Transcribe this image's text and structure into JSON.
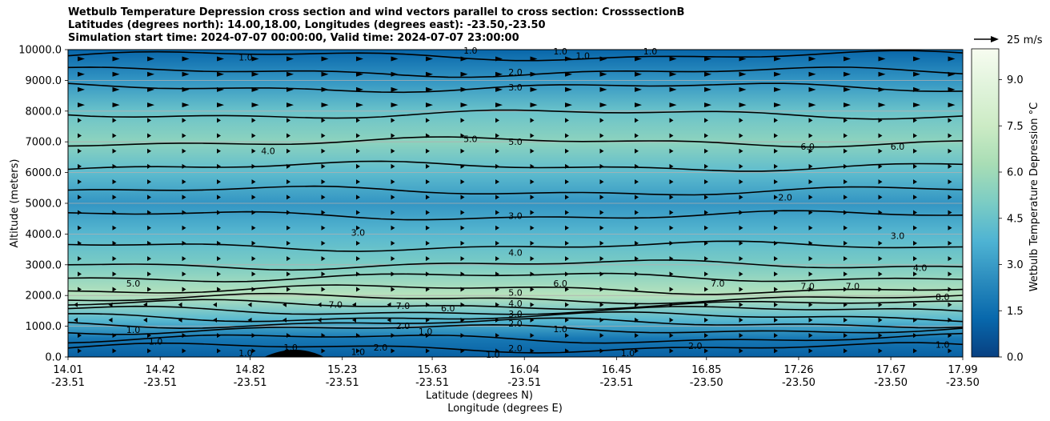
{
  "title_lines": [
    "Wetbulb Temperature Depression cross section and wind vectors parallel to cross section: CrosssectionB",
    "Latitudes (degrees north): 14.00,18.00, Longitudes (degrees east): -23.50,-23.50",
    "Simulation start time: 2024-07-07 00:00:00, Valid time: 2024-07-07 23:00:00"
  ],
  "chart_data": {
    "type": "heatmap",
    "ylabel": "Altitude (meters)",
    "xlabel_lat": "Latitude (degrees N)",
    "xlabel_lon": "Longitude (degrees E)",
    "ylim": [
      0,
      10000
    ],
    "yticks": [
      "0.0",
      "1000.0",
      "2000.0",
      "3000.0",
      "4000.0",
      "5000.0",
      "6000.0",
      "7000.0",
      "8000.0",
      "9000.0",
      "10000.0"
    ],
    "grid": "horizontal",
    "xticks": [
      {
        "lat": "14.01",
        "lon": "-23.51"
      },
      {
        "lat": "14.42",
        "lon": "-23.51"
      },
      {
        "lat": "14.82",
        "lon": "-23.51"
      },
      {
        "lat": "15.23",
        "lon": "-23.51"
      },
      {
        "lat": "15.63",
        "lon": "-23.51"
      },
      {
        "lat": "16.04",
        "lon": "-23.51"
      },
      {
        "lat": "16.45",
        "lon": "-23.51"
      },
      {
        "lat": "16.85",
        "lon": "-23.50"
      },
      {
        "lat": "17.26",
        "lon": "-23.50"
      },
      {
        "lat": "17.67",
        "lon": "-23.50"
      },
      {
        "lat": "17.99",
        "lon": "-23.50"
      }
    ],
    "colorbar": {
      "label": "Wetbulb Temperature Depression °C",
      "range": [
        0.0,
        10.0
      ],
      "ticks": [
        "0.0",
        "1.5",
        "3.0",
        "4.5",
        "6.0",
        "7.5",
        "9.0"
      ],
      "colormap": "GnBu_r"
    },
    "wind_key": "25 m/s",
    "colormap_colors": [
      "#084081",
      "#0868ac",
      "#2b8cbe",
      "#4eb3d3",
      "#7bccc4",
      "#a8ddb5",
      "#ccebc5",
      "#e0f3db",
      "#f7fcf0"
    ],
    "depression_profile": [
      {
        "alt": 0,
        "value": 1.0
      },
      {
        "alt": 600,
        "value": 1.8
      },
      {
        "alt": 1200,
        "value": 4.0
      },
      {
        "alt": 2000,
        "value": 6.8
      },
      {
        "alt": 3000,
        "value": 5.0
      },
      {
        "alt": 4000,
        "value": 4.0
      },
      {
        "alt": 5000,
        "value": 2.8
      },
      {
        "alt": 6000,
        "value": 4.2
      },
      {
        "alt": 7000,
        "value": 5.5
      },
      {
        "alt": 8000,
        "value": 4.5
      },
      {
        "alt": 9000,
        "value": 2.8
      },
      {
        "alt": 10000,
        "value": 1.2
      }
    ],
    "contour_labels": [
      {
        "text": "1.0",
        "x": 16.3,
        "alt": 9800
      },
      {
        "text": "2.0",
        "x": 16.0,
        "alt": 9270
      },
      {
        "text": "3.0",
        "x": 16.0,
        "alt": 8770
      },
      {
        "text": "5.0",
        "x": 15.8,
        "alt": 7100
      },
      {
        "text": "5.0",
        "x": 16.0,
        "alt": 7000
      },
      {
        "text": "4.0",
        "x": 14.9,
        "alt": 6700
      },
      {
        "text": "6.0",
        "x": 17.3,
        "alt": 6850
      },
      {
        "text": "6.0",
        "x": 17.7,
        "alt": 6850
      },
      {
        "text": "2.0",
        "x": 17.2,
        "alt": 5200
      },
      {
        "text": "3.0",
        "x": 16.0,
        "alt": 4600
      },
      {
        "text": "3.0",
        "x": 15.3,
        "alt": 4050
      },
      {
        "text": "3.0",
        "x": 17.7,
        "alt": 3950
      },
      {
        "text": "4.0",
        "x": 16.0,
        "alt": 3400
      },
      {
        "text": "4.0",
        "x": 17.8,
        "alt": 2900
      },
      {
        "text": "5.0",
        "x": 14.3,
        "alt": 2400
      },
      {
        "text": "6.0",
        "x": 16.2,
        "alt": 2400
      },
      {
        "text": "7.0",
        "x": 16.9,
        "alt": 2400
      },
      {
        "text": "7.0",
        "x": 17.3,
        "alt": 2300
      },
      {
        "text": "7.0",
        "x": 17.5,
        "alt": 2300
      },
      {
        "text": "8.0",
        "x": 17.9,
        "alt": 1950
      },
      {
        "text": "5.0",
        "x": 16.0,
        "alt": 2100
      },
      {
        "text": "4.0",
        "x": 16.0,
        "alt": 1740
      },
      {
        "text": "7.0",
        "x": 15.2,
        "alt": 1700
      },
      {
        "text": "7.0",
        "x": 15.5,
        "alt": 1670
      },
      {
        "text": "6.0",
        "x": 15.7,
        "alt": 1590
      },
      {
        "text": "3.0",
        "x": 16.0,
        "alt": 1400
      },
      {
        "text": "2.0",
        "x": 16.0,
        "alt": 1100
      },
      {
        "text": "1.0",
        "x": 14.3,
        "alt": 890
      },
      {
        "text": "1.0",
        "x": 14.4,
        "alt": 510
      },
      {
        "text": "1.0",
        "x": 16.2,
        "alt": 910
      },
      {
        "text": "2.0",
        "x": 15.5,
        "alt": 1010
      },
      {
        "text": "1.0",
        "x": 15.6,
        "alt": 830
      },
      {
        "text": "2.0",
        "x": 15.4,
        "alt": 310
      },
      {
        "text": "1.0",
        "x": 15.0,
        "alt": 310
      },
      {
        "text": "1.0",
        "x": 14.8,
        "alt": 130
      },
      {
        "text": "1.0",
        "x": 15.3,
        "alt": 170
      },
      {
        "text": "1.0",
        "x": 15.9,
        "alt": 80
      },
      {
        "text": "2.0",
        "x": 16.0,
        "alt": 290
      },
      {
        "text": "1.0",
        "x": 16.5,
        "alt": 130
      },
      {
        "text": "2.0",
        "x": 16.8,
        "alt": 360
      },
      {
        "text": "1.0",
        "x": 17.9,
        "alt": 410
      },
      {
        "text": "1.0",
        "x": 15.8,
        "alt": 9970
      },
      {
        "text": "1.0",
        "x": 16.2,
        "alt": 9950
      },
      {
        "text": "1.0",
        "x": 16.6,
        "alt": 9950
      },
      {
        "text": "1.0",
        "x": 14.8,
        "alt": 9750
      }
    ]
  }
}
